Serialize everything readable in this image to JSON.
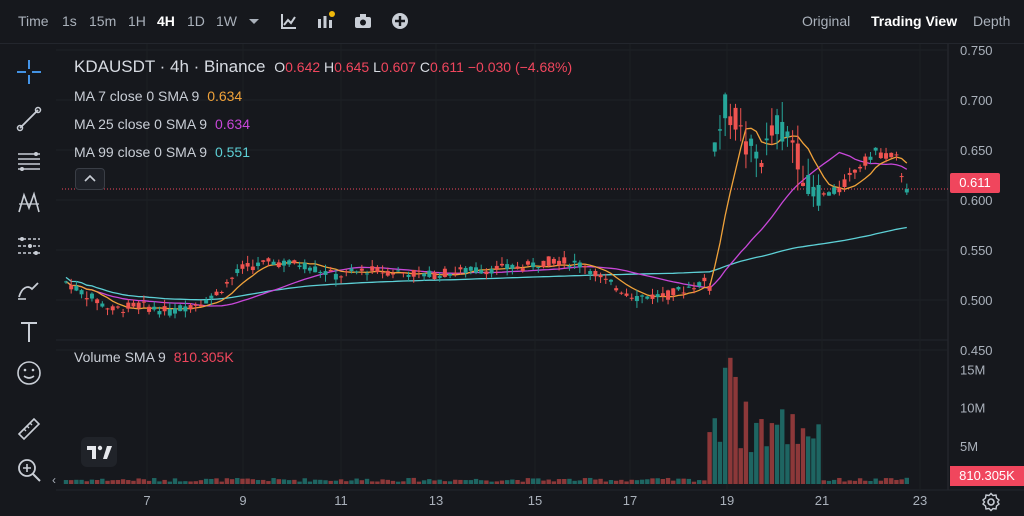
{
  "topbar": {
    "time_label": "Time",
    "intervals": [
      "1s",
      "15m",
      "1H",
      "4H",
      "1D",
      "1W"
    ],
    "active_interval": "4H",
    "views": [
      "Original",
      "Trading View",
      "Depth"
    ],
    "active_view": "Trading View"
  },
  "legend": {
    "symbol": "KDAUSDT",
    "interval": "4h",
    "exchange": "Binance",
    "symbol_line": "KDAUSDT · 4h · Binance",
    "open_label": "O",
    "open": "0.642",
    "high_label": "H",
    "high": "0.645",
    "low_label": "L",
    "low": "0.607",
    "close_label": "C",
    "close": "0.611",
    "change": "−0.030 (−4.68%)",
    "ma7_label": "MA 7 close 0 SMA 9",
    "ma7_value": "0.634",
    "ma25_label": "MA 25 close 0 SMA 9",
    "ma25_value": "0.634",
    "ma99_label": "MA 99 close 0 SMA 9",
    "ma99_value": "0.551",
    "volume_label": "Volume SMA 9",
    "volume_value": "810.305K"
  },
  "price_badge": "0.611",
  "volume_badge": "810.305K",
  "colors": {
    "up": "#26a69a",
    "down": "#ef5350",
    "ma7": "#f0a23a",
    "ma25": "#c847d9",
    "ma99": "#5dd0d6",
    "bg": "#16181d"
  },
  "icons": [
    "crosshair-icon",
    "trend-line-icon",
    "fib-icon",
    "pattern-icon",
    "prediction-icon",
    "brush-icon",
    "text-icon",
    "emoji-icon",
    "ruler-icon",
    "zoom-in-icon"
  ],
  "chart_data": {
    "type": "candlestick",
    "price_axis": [
      "0.750",
      "0.700",
      "0.650",
      "0.600",
      "0.550",
      "0.500",
      "0.450"
    ],
    "volume_axis": [
      "15M",
      "10M",
      "5M"
    ],
    "x_axis": [
      "7",
      "9",
      "11",
      "13",
      "15",
      "17",
      "19",
      "21",
      "23"
    ],
    "ylim": [
      0.43,
      0.76
    ],
    "moving_averages": [
      {
        "name": "MA 7",
        "last": 0.634
      },
      {
        "name": "MA 25",
        "last": 0.634
      },
      {
        "name": "MA 99",
        "last": 0.551
      }
    ],
    "last_price": 0.611
  }
}
